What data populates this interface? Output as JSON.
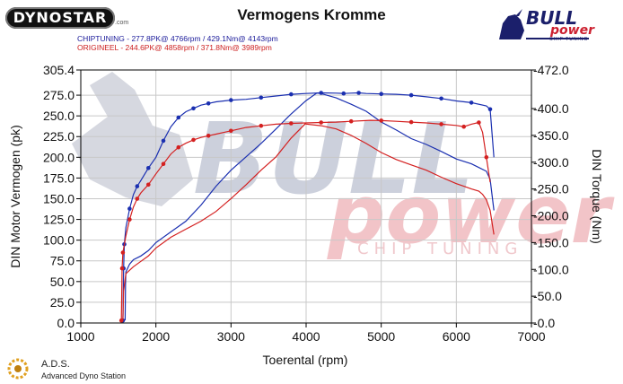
{
  "header": {
    "title": "Vermogens Kromme",
    "dynostar_logo": "DYNOSTAR",
    "dynostar_sub": ".com",
    "legend_1": "CHIPTUNING  - 277.8PK@ 4766rpm / 429.1Nm@ 4143rpm",
    "legend_2": "ORIGINEEL  - 244.6PK@ 4858rpm / 371.8Nm@ 3989rpm"
  },
  "brand": {
    "bull": "BULL",
    "power": "power",
    "chip_tuning": "CHIP TUNING",
    "watermark_bull": "BULL",
    "watermark_power": "power",
    "watermark_chip": "CHIP TUNING"
  },
  "footer": {
    "ads_title": "A.D.S.",
    "ads_subtitle": "Advanced Dyno Station"
  },
  "colors": {
    "chiptuning": "#1a2fb0",
    "origineel": "#d42020",
    "grid": "#c8c8c8",
    "watermark_blue": "#d0d3dc",
    "watermark_red": "#f2c4c8"
  },
  "chart_data": {
    "type": "line",
    "xlabel": "Toerental (rpm)",
    "ylabel_left": "DIN Motor Vermogen (pk)",
    "ylabel_right": "DIN Torque (Nm)",
    "xlim": [
      1000,
      7000
    ],
    "ylim_left": [
      0,
      305.4
    ],
    "ylim_right": [
      0,
      472.0
    ],
    "x_ticks": [
      "1000",
      "2000",
      "3000",
      "4000",
      "5000",
      "6000",
      "7000"
    ],
    "y_ticks_left": [
      "0.0",
      "25.0",
      "50.0",
      "75.0",
      "100.0",
      "125.0",
      "150.0",
      "175.0",
      "200.0",
      "225.0",
      "250.0",
      "275.0",
      "305.4"
    ],
    "y_ticks_right": [
      "0.0",
      "50.0",
      "100.0",
      "150.0",
      "200.0",
      "250.0",
      "300.0",
      "350.0",
      "400.0",
      "472.0"
    ],
    "grid": true,
    "series": [
      {
        "name": "CHIPTUNING",
        "quantity": "power",
        "axis": "left",
        "x": [
          1560,
          1570,
          1580,
          1600,
          1650,
          1700,
          1750,
          1800,
          1900,
          2000,
          2100,
          2200,
          2300,
          2400,
          2500,
          2600,
          2700,
          2800,
          3000,
          3200,
          3400,
          3600,
          3800,
          4000,
          4200,
          4400,
          4500,
          4600,
          4700,
          4800,
          5000,
          5200,
          5400,
          5600,
          5800,
          6000,
          6200,
          6400,
          6450,
          6500
        ],
        "y": [
          3,
          66,
          95,
          115,
          138,
          155,
          165,
          172,
          187,
          200,
          220,
          237,
          248,
          255,
          259,
          263,
          265,
          267,
          269,
          270,
          272,
          274,
          276,
          277,
          277.8,
          277.5,
          277,
          277.5,
          277.8,
          277,
          276.5,
          276,
          275,
          273,
          271,
          268,
          266,
          262,
          258,
          200
        ]
      },
      {
        "name": "CHIPTUNING",
        "quantity": "torque",
        "axis": "right",
        "x": [
          1590,
          1595,
          1600,
          1650,
          1700,
          1800,
          1900,
          2000,
          2200,
          2400,
          2600,
          2800,
          3000,
          3200,
          3400,
          3600,
          3800,
          4000,
          4143,
          4200,
          4400,
          4600,
          4800,
          5000,
          5200,
          5400,
          5600,
          5800,
          6000,
          6200,
          6300,
          6400,
          6450,
          6500
        ],
        "y": [
          5,
          70,
          95,
          110,
          118,
          125,
          135,
          150,
          170,
          190,
          220,
          255,
          285,
          310,
          335,
          362,
          390,
          415,
          429.1,
          428,
          420,
          408,
          395,
          375,
          360,
          344,
          333,
          320,
          306,
          297,
          290,
          283,
          268,
          210
        ]
      },
      {
        "name": "ORIGINEEL",
        "quantity": "power",
        "axis": "left",
        "x": [
          1540,
          1550,
          1560,
          1600,
          1650,
          1700,
          1750,
          1800,
          1900,
          2000,
          2100,
          2200,
          2300,
          2400,
          2500,
          2600,
          2700,
          2800,
          3000,
          3200,
          3400,
          3600,
          3800,
          4000,
          4200,
          4400,
          4600,
          4858,
          5000,
          5200,
          5400,
          5600,
          5800,
          6000,
          6100,
          6200,
          6300,
          6350,
          6400,
          6450
        ],
        "y": [
          3,
          66,
          85,
          105,
          125,
          140,
          150,
          157,
          167,
          180,
          192,
          204,
          212,
          217,
          221,
          224,
          226,
          228,
          232,
          236,
          238,
          240,
          241,
          241.5,
          242,
          242.5,
          243.5,
          244.6,
          244.3,
          243.5,
          242.5,
          241.5,
          240,
          238.5,
          237,
          240,
          242,
          230,
          200,
          170
        ]
      },
      {
        "name": "ORIGINEEL",
        "quantity": "torque",
        "axis": "right",
        "x": [
          1560,
          1570,
          1600,
          1700,
          1800,
          1900,
          2000,
          2200,
          2400,
          2600,
          2800,
          3000,
          3200,
          3400,
          3600,
          3800,
          3989,
          4000,
          4200,
          4400,
          4600,
          4800,
          5000,
          5200,
          5400,
          5600,
          5800,
          6000,
          6100,
          6200,
          6300,
          6350,
          6400,
          6450,
          6500
        ],
        "y": [
          5,
          60,
          92,
          105,
          115,
          125,
          140,
          160,
          175,
          190,
          208,
          232,
          258,
          285,
          310,
          345,
          371.8,
          371,
          368,
          362,
          350,
          335,
          318,
          305,
          295,
          285,
          272,
          260,
          255,
          250,
          246,
          240,
          230,
          210,
          165
        ]
      }
    ]
  }
}
